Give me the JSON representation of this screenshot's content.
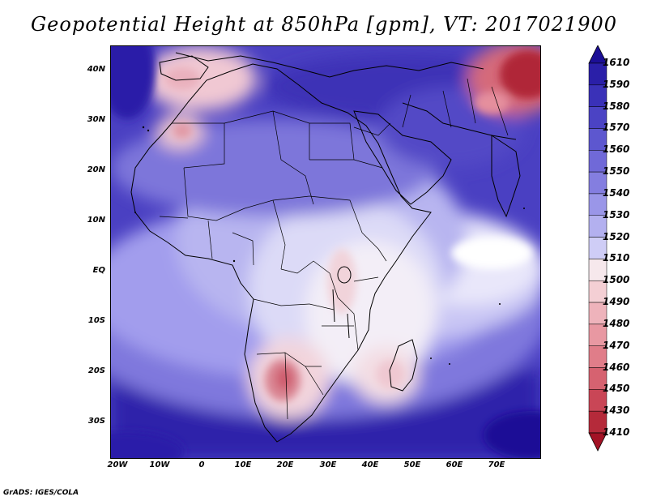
{
  "title": "Geopotential Height at 850hPa [gpm], VT: 2017021900",
  "credit": "GrADS: IGES/COLA",
  "lat_ticks": [
    "40N",
    "30N",
    "20N",
    "10N",
    "EQ",
    "10S",
    "20S",
    "30S"
  ],
  "lon_ticks": [
    "20W",
    "10W",
    "0",
    "10E",
    "20E",
    "30E",
    "40E",
    "50E",
    "60E",
    "70E"
  ],
  "colorbar": {
    "levels": [
      "1610",
      "1590",
      "1580",
      "1570",
      "1560",
      "1550",
      "1540",
      "1530",
      "1520",
      "1510",
      "1500",
      "1490",
      "1480",
      "1470",
      "1460",
      "1450",
      "1430",
      "1410"
    ],
    "colors": [
      "#1c0f96",
      "#2a1fa8",
      "#3a31b8",
      "#4b43c4",
      "#5d57cf",
      "#7069d8",
      "#847ee0",
      "#9a96e8",
      "#b3b0ef",
      "#cfcdf6",
      "#f6e8ec",
      "#f4cfd4",
      "#eeb3bb",
      "#e898a2",
      "#e07d89",
      "#d66270",
      "#c94656",
      "#b52a3a",
      "#a31225"
    ]
  }
}
